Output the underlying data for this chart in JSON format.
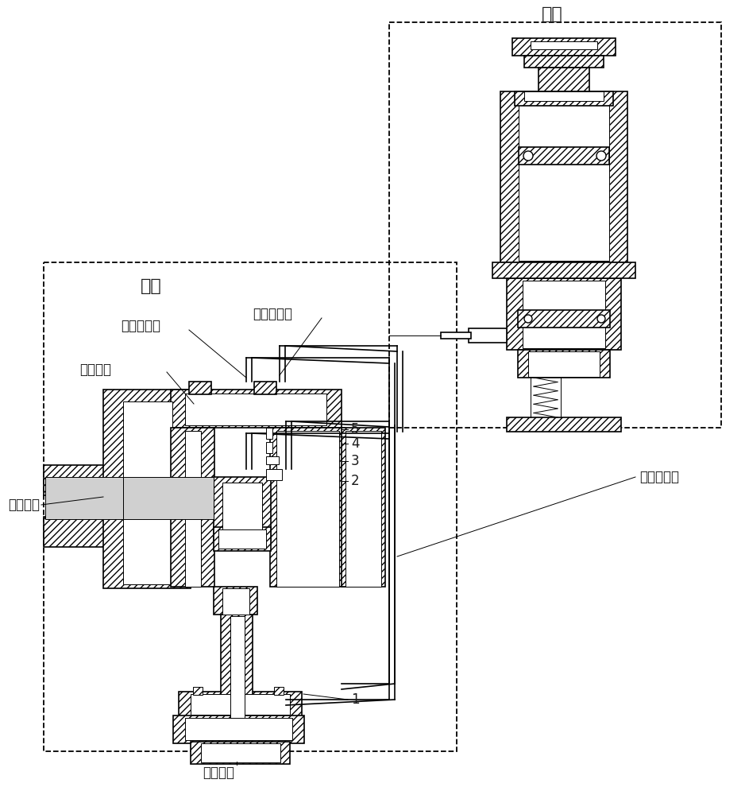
{
  "bg": "#ffffff",
  "lc": "#1a1a1a",
  "gray": "#b8b8b8",
  "light_gray": "#d0d0d0",
  "figsize": [
    9.38,
    10.0
  ],
  "dpi": 100,
  "labels": {
    "guide_valve": "导阀",
    "main_valve": "主阀",
    "main_outlet": "主阀出口",
    "main_inlet": "主阀入口",
    "main_chamber": "主阀气室",
    "chamber_pressure": "气室压力管",
    "outlet_pressure": "出口压力管",
    "inlet_pressure": "入口压力管"
  }
}
